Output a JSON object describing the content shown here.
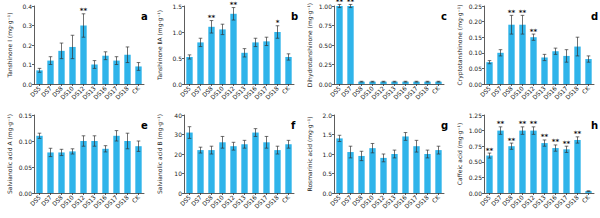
{
  "chart_data": [
    {
      "type": "bar",
      "title": "a",
      "y_label": "Tanshinone Ⅰ (mg·g⁻¹)",
      "color": "#2fb4ea",
      "categories": [
        "DS5",
        "DS7",
        "DS8",
        "DS10",
        "DS12",
        "DS13",
        "DS16",
        "DS17",
        "DS18",
        "CK"
      ],
      "values": [
        0.07,
        0.12,
        0.17,
        0.19,
        0.3,
        0.1,
        0.145,
        0.12,
        0.15,
        0.09
      ],
      "errors": [
        0.01,
        0.02,
        0.04,
        0.06,
        0.06,
        0.02,
        0.02,
        0.02,
        0.04,
        0.02
      ],
      "ylim": [
        0,
        0.4
      ],
      "yticks": [
        {
          "value": 0,
          "label": "0.0"
        },
        0.1,
        0.2,
        0.3,
        0.4
      ],
      "annotations": [
        {
          "category": "DS12",
          "text": "**"
        }
      ]
    },
    {
      "type": "bar",
      "title": "b",
      "y_label": "Tanshinone ⅡA (mg·g⁻¹)",
      "color": "#2fb4ea",
      "categories": [
        "DS5",
        "DS7",
        "DS8",
        "DS10",
        "DS12",
        "DS13",
        "DS16",
        "DS17",
        "DS18",
        "CK"
      ],
      "values": [
        0.52,
        0.8,
        1.1,
        1.05,
        1.35,
        0.6,
        0.8,
        0.82,
        1.0,
        0.52
      ],
      "errors": [
        0.04,
        0.08,
        0.12,
        0.1,
        0.12,
        0.08,
        0.08,
        0.08,
        0.12,
        0.06
      ],
      "ylim": [
        0,
        1.5
      ],
      "yticks": [
        {
          "value": 0,
          "label": "0.0"
        },
        0.5,
        {
          "value": 1,
          "label": "1.0"
        },
        1.5
      ],
      "annotations": [
        {
          "category": "DS8",
          "text": "**"
        },
        {
          "category": "DS12",
          "text": "**"
        },
        {
          "category": "DS18",
          "text": "*"
        }
      ]
    },
    {
      "type": "bar",
      "title": "c",
      "y_label": "Dihydrotanshinone (mg·g⁻¹)",
      "color": "#2fb4ea",
      "categories": [
        "DS5",
        "DS7",
        "DS8",
        "DS10",
        "DS12",
        "DS13",
        "DS16",
        "DS17",
        "DS18",
        "CK"
      ],
      "values": [
        1.0,
        1.0,
        0.03,
        0.03,
        0.03,
        0.03,
        0.03,
        0.03,
        0.03,
        0.03
      ],
      "errors": [
        0.02,
        0.02,
        0.005,
        0.005,
        0.005,
        0.005,
        0.005,
        0.005,
        0.005,
        0.005
      ],
      "ylim": [
        0,
        1
      ],
      "yticks": [
        {
          "value": 0,
          "label": "0.00"
        },
        0.25,
        {
          "value": 0.5,
          "label": "0.50"
        },
        0.75,
        {
          "value": 1,
          "label": "1.00"
        }
      ],
      "annotations": [
        {
          "category": "DS5",
          "text": "**"
        },
        {
          "category": "DS7",
          "text": "**"
        }
      ]
    },
    {
      "type": "bar",
      "title": "d",
      "y_label": "Cryptotanshinone (mg·g⁻¹)",
      "color": "#2fb4ea",
      "categories": [
        "DS5",
        "DS7",
        "DS8",
        "DS10",
        "DS12",
        "DS13",
        "DS16",
        "DS17",
        "DS18",
        "CK"
      ],
      "values": [
        0.07,
        0.1,
        0.19,
        0.19,
        0.15,
        0.085,
        0.105,
        0.09,
        0.12,
        0.08
      ],
      "errors": [
        0.005,
        0.01,
        0.03,
        0.03,
        0.01,
        0.01,
        0.01,
        0.02,
        0.03,
        0.01
      ],
      "ylim": [
        0,
        0.25
      ],
      "yticks": [
        {
          "value": 0,
          "label": "0.00"
        },
        0.05,
        {
          "value": 0.1,
          "label": "0.10"
        },
        0.15,
        {
          "value": 0.2,
          "label": "0.20"
        },
        0.25
      ],
      "annotations": [
        {
          "category": "DS8",
          "text": "**"
        },
        {
          "category": "DS10",
          "text": "**"
        },
        {
          "category": "DS12",
          "text": "**"
        }
      ]
    },
    {
      "type": "bar",
      "title": "e",
      "y_label": "Salvianolic acid A (mg·g⁻¹)",
      "color": "#2fb4ea",
      "categories": [
        "DS5",
        "DS7",
        "DS8",
        "DS10",
        "DS12",
        "DS13",
        "DS16",
        "DS17",
        "DS18",
        "CK"
      ],
      "values": [
        0.11,
        0.078,
        0.078,
        0.08,
        0.1,
        0.1,
        0.085,
        0.11,
        0.1,
        0.09
      ],
      "errors": [
        0.005,
        0.008,
        0.006,
        0.005,
        0.01,
        0.01,
        0.006,
        0.01,
        0.015,
        0.01
      ],
      "ylim": [
        0,
        0.15
      ],
      "yticks": [
        {
          "value": 0,
          "label": "0.00"
        },
        0.05,
        {
          "value": 0.1,
          "label": "0.10"
        },
        0.15
      ],
      "annotations": []
    },
    {
      "type": "bar",
      "title": "f",
      "y_label": "Salvianolic acid B (mg·g⁻¹)",
      "color": "#2fb4ea",
      "categories": [
        "DS5",
        "DS7",
        "DS8",
        "DS10",
        "DS12",
        "DS13",
        "DS16",
        "DS17",
        "DS18",
        "CK"
      ],
      "values": [
        31,
        22,
        22,
        26,
        24,
        25,
        31,
        26,
        22,
        25
      ],
      "errors": [
        3,
        1.5,
        2,
        3,
        2,
        2,
        2,
        3,
        2,
        2
      ],
      "ylim": [
        0,
        40
      ],
      "yticks": [
        0,
        10,
        20,
        30,
        40
      ],
      "annotations": []
    },
    {
      "type": "bar",
      "title": "g",
      "y_label": "Rosmarinic acid (mg·g⁻¹)",
      "color": "#2fb4ea",
      "categories": [
        "DS5",
        "DS7",
        "DS8",
        "DS10",
        "DS12",
        "DS13",
        "DS16",
        "DS17",
        "DS18",
        "CK"
      ],
      "values": [
        1.4,
        1.05,
        0.95,
        1.15,
        0.9,
        1.0,
        1.45,
        1.2,
        1.0,
        1.1
      ],
      "errors": [
        0.08,
        0.15,
        0.12,
        0.12,
        0.1,
        0.1,
        0.1,
        0.15,
        0.1,
        0.1
      ],
      "ylim": [
        0,
        2
      ],
      "yticks": [
        {
          "value": 0,
          "label": "0.0"
        },
        0.5,
        {
          "value": 1,
          "label": "1.0"
        },
        1.5,
        {
          "value": 2,
          "label": "2.0"
        }
      ],
      "annotations": []
    },
    {
      "type": "bar",
      "title": "h",
      "y_label": "Caffeic acid (mg·g⁻¹)",
      "color": "#2fb4ea",
      "categories": [
        "DS5",
        "DS7",
        "DS8",
        "DS10",
        "DS12",
        "DS13",
        "DS16",
        "DS17",
        "DS18",
        "CK"
      ],
      "values": [
        0.6,
        1.0,
        0.75,
        1.0,
        1.0,
        0.8,
        0.72,
        0.7,
        0.85,
        0.03
      ],
      "errors": [
        0.04,
        0.06,
        0.05,
        0.06,
        0.06,
        0.05,
        0.05,
        0.05,
        0.05,
        0.005
      ],
      "ylim": [
        0,
        1.25
      ],
      "yticks": [
        {
          "value": 0,
          "label": "0.00"
        },
        0.25,
        {
          "value": 0.5,
          "label": "0.50"
        },
        0.75,
        {
          "value": 1,
          "label": "1.00"
        },
        1.25
      ],
      "annotations": [
        {
          "category": "DS5",
          "text": "**"
        },
        {
          "category": "DS7",
          "text": "**"
        },
        {
          "category": "DS8",
          "text": "**"
        },
        {
          "category": "DS10",
          "text": "**"
        },
        {
          "category": "DS12",
          "text": "**"
        },
        {
          "category": "DS13",
          "text": "**"
        },
        {
          "category": "DS16",
          "text": "**"
        },
        {
          "category": "DS17",
          "text": "**"
        },
        {
          "category": "DS18",
          "text": "**"
        }
      ]
    }
  ]
}
